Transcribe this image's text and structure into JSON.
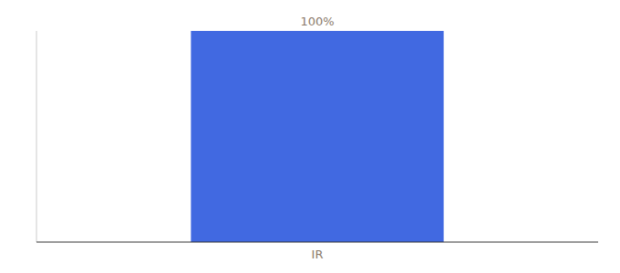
{
  "chart_data": {
    "type": "bar",
    "categories": [
      "IR"
    ],
    "values": [
      100
    ],
    "value_labels": [
      "100%"
    ],
    "data_labels": true,
    "color": "#4169E1",
    "ylim": [
      0,
      100
    ],
    "yticks": [],
    "tick_labels": "x"
  }
}
